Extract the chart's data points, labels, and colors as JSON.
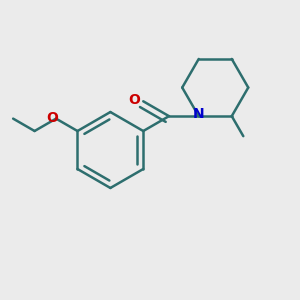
{
  "background_color": "#ebebeb",
  "bond_color": "#2d6e6e",
  "oxygen_color": "#cc0000",
  "nitrogen_color": "#0000cc",
  "line_width": 1.8,
  "fig_width": 3.0,
  "fig_height": 3.0,
  "dpi": 100,
  "O_carbonyl_label": "O",
  "N_label": "N",
  "O_ethoxy_label": "O"
}
